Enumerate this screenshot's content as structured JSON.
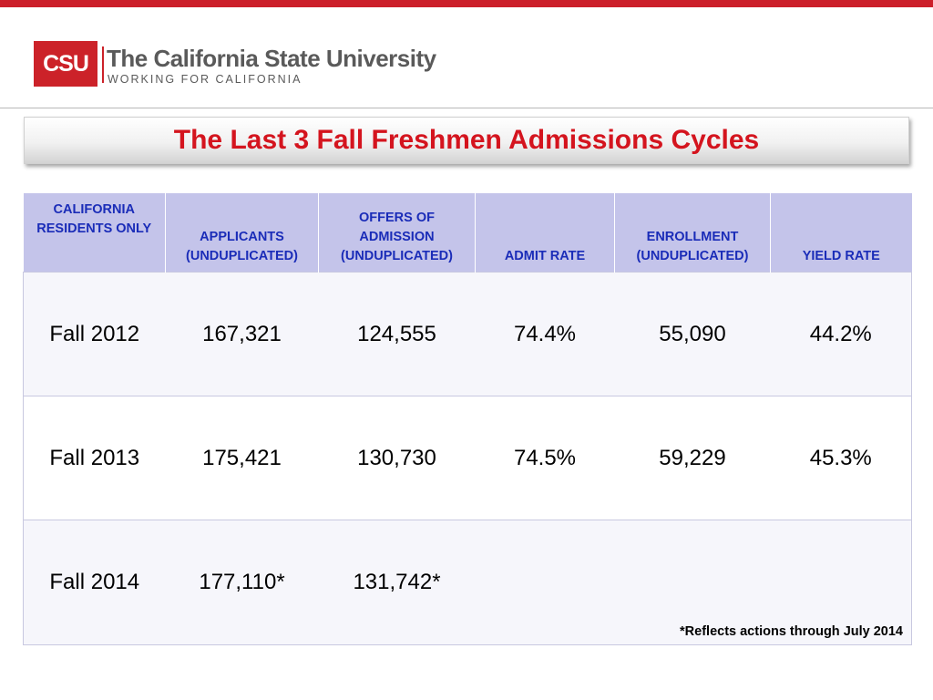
{
  "brand": {
    "logo_mark": "CSU",
    "name": "The California State University",
    "tagline": "WORKING FOR CALIFORNIA",
    "accent_color": "#cc2229"
  },
  "slide": {
    "title": "The Last 3 Fall Freshmen Admissions Cycles",
    "title_color": "#d4141e"
  },
  "table": {
    "headers": [
      "CALIFORNIA RESIDENTS ONLY",
      "APPLICANTS (UNDUPLICATED)",
      "OFFERS OF ADMISSION (UNDUPLICATED)",
      "ADMIT RATE",
      "ENROLLMENT (UNDUPLICATED)",
      "YIELD RATE"
    ],
    "header_bg": "#c4c4ea",
    "header_color": "#1a2cb8",
    "rows": [
      [
        "Fall 2012",
        "167,321",
        "124,555",
        "74.4%",
        "55,090",
        "44.2%"
      ],
      [
        "Fall 2013",
        "175,421",
        "130,730",
        "74.5%",
        "59,229",
        "45.3%"
      ],
      [
        "Fall 2014",
        "177,110*",
        "131,742*",
        "",
        "",
        ""
      ]
    ],
    "footnote": "*Reflects actions through July 2014"
  }
}
